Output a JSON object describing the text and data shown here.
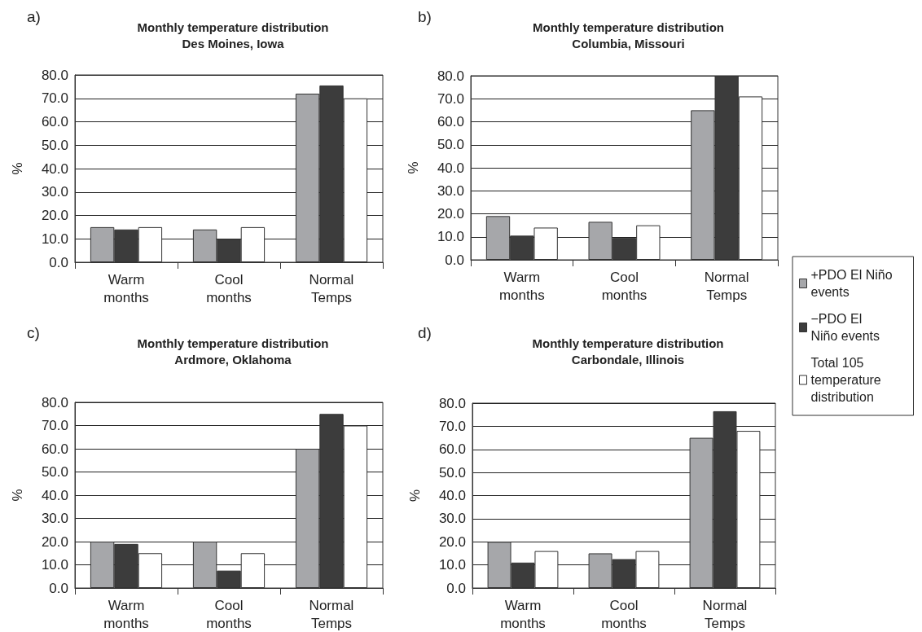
{
  "chart_data": [
    {
      "type": "bar",
      "title": "Monthly temperature distribution",
      "subtitle": "Des Moines, Iowa",
      "ylabel": "%",
      "annotations": [
        "a)"
      ],
      "categories": [
        "Warm\nmonths",
        "Cool\nmonths",
        "Normal\nTemps"
      ],
      "series": [
        {
          "color": "#a6a7aa",
          "values": [
            15,
            14,
            72
          ]
        },
        {
          "color": "#3c3c3c",
          "values": [
            14,
            10,
            75.5
          ]
        },
        {
          "color": "#ffffff",
          "values": [
            15,
            15,
            70
          ]
        }
      ],
      "ylim": [
        0,
        80
      ],
      "yticks": [
        {
          "value": 0,
          "label": "0.0"
        },
        {
          "value": 10,
          "label": "10.0"
        },
        {
          "value": 20,
          "label": "20.0"
        },
        {
          "value": 30,
          "label": "30.0"
        },
        {
          "value": 40,
          "label": "40.0"
        },
        {
          "value": 50,
          "label": "50.0"
        },
        {
          "value": 60,
          "label": "60.0"
        },
        {
          "value": 70,
          "label": "70.0"
        },
        {
          "value": 80,
          "label": "80.0"
        }
      ],
      "grid": "y",
      "legend": false
    },
    {
      "type": "bar",
      "title": "Monthly temperature distribution",
      "subtitle": "Columbia, Missouri",
      "ylabel": "%",
      "annotations": [
        "b)"
      ],
      "categories": [
        "Warm\nmonths",
        "Cool\nmonths",
        "Normal\nTemps"
      ],
      "series": [
        {
          "name": "+PDO El Niño events",
          "color": "#a6a7aa",
          "values": [
            19,
            16.5,
            65
          ]
        },
        {
          "name": "−PDO El Niño events",
          "color": "#3c3c3c",
          "values": [
            10.5,
            9.5,
            80
          ]
        },
        {
          "name": "Total 105 temperature distribution",
          "color": "#ffffff",
          "values": [
            14,
            15,
            71
          ]
        }
      ],
      "ylim": [
        0,
        80
      ],
      "yticks": [
        {
          "value": 0,
          "label": "0.0"
        },
        {
          "value": 10,
          "label": "10.0"
        },
        {
          "value": 20,
          "label": "20.0"
        },
        {
          "value": 30,
          "label": "30.0"
        },
        {
          "value": 40,
          "label": "40.0"
        },
        {
          "value": 50,
          "label": "50.0"
        },
        {
          "value": 60,
          "label": "60.0"
        },
        {
          "value": 70,
          "label": "70.0"
        },
        {
          "value": 80,
          "label": "80.0"
        }
      ],
      "grid": "y",
      "legend": "right"
    },
    {
      "type": "bar",
      "title": "Monthly temperature distribution",
      "subtitle": "Ardmore, Oklahoma",
      "ylabel": "%",
      "annotations": [
        "c)"
      ],
      "categories": [
        "Warm\nmonths",
        "Cool\nmonths",
        "Normal\nTemps"
      ],
      "series": [
        {
          "color": "#a6a7aa",
          "values": [
            20,
            20,
            60
          ]
        },
        {
          "color": "#3c3c3c",
          "values": [
            19,
            7.5,
            75
          ]
        },
        {
          "color": "#ffffff",
          "values": [
            15,
            15,
            70
          ]
        }
      ],
      "ylim": [
        0,
        80
      ],
      "yticks": [
        {
          "value": 0,
          "label": "0.0"
        },
        {
          "value": 10,
          "label": "10.0"
        },
        {
          "value": 20,
          "label": "20.0"
        },
        {
          "value": 30,
          "label": "30.0"
        },
        {
          "value": 40,
          "label": "40.0"
        },
        {
          "value": 50,
          "label": "50.0"
        },
        {
          "value": 60,
          "label": "60.0"
        },
        {
          "value": 70,
          "label": "70.0"
        },
        {
          "value": 80,
          "label": "80.0"
        }
      ],
      "grid": "y",
      "legend": false
    },
    {
      "type": "bar",
      "title": "Monthly temperature distribution",
      "subtitle": "Carbondale, Illinois",
      "ylabel": "%",
      "annotations": [
        "d)"
      ],
      "categories": [
        "Warm\nmonths",
        "Cool\nmonths",
        "Normal\nTemps"
      ],
      "series": [
        {
          "color": "#a6a7aa",
          "values": [
            20,
            15,
            65
          ]
        },
        {
          "color": "#3c3c3c",
          "values": [
            11,
            12.5,
            76.5
          ]
        },
        {
          "color": "#ffffff",
          "values": [
            16,
            16,
            68
          ]
        }
      ],
      "ylim": [
        0,
        80
      ],
      "yticks": [
        {
          "value": 0,
          "label": "0.0"
        },
        {
          "value": 10,
          "label": "10.0"
        },
        {
          "value": 20,
          "label": "20.0"
        },
        {
          "value": 30,
          "label": "30.0"
        },
        {
          "value": 40,
          "label": "40.0"
        },
        {
          "value": 50,
          "label": "50.0"
        },
        {
          "value": 60,
          "label": "60.0"
        },
        {
          "value": 70,
          "label": "70.0"
        },
        {
          "value": 80,
          "label": "80.0"
        }
      ],
      "grid": "y",
      "legend": false
    }
  ]
}
